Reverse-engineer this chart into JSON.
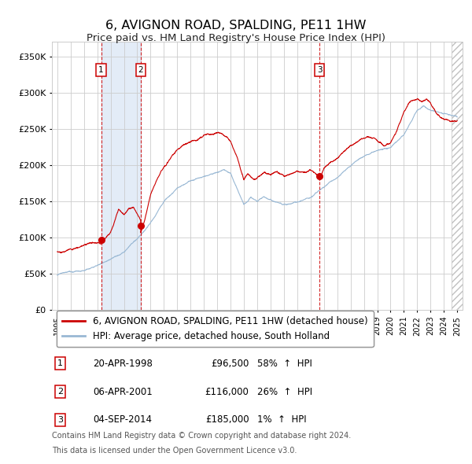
{
  "title": "6, AVIGNON ROAD, SPALDING, PE11 1HW",
  "subtitle": "Price paid vs. HM Land Registry's House Price Index (HPI)",
  "xlim": [
    1994.6,
    2025.4
  ],
  "ylim": [
    0,
    370000
  ],
  "yticks": [
    0,
    50000,
    100000,
    150000,
    200000,
    250000,
    300000,
    350000
  ],
  "ytick_labels": [
    "£0",
    "£50K",
    "£100K",
    "£150K",
    "£200K",
    "£250K",
    "£300K",
    "£350K"
  ],
  "xtick_years": [
    1995,
    1996,
    1997,
    1998,
    1999,
    2000,
    2001,
    2002,
    2003,
    2004,
    2005,
    2006,
    2007,
    2008,
    2009,
    2010,
    2011,
    2012,
    2013,
    2014,
    2015,
    2016,
    2017,
    2018,
    2019,
    2020,
    2021,
    2022,
    2023,
    2024,
    2025
  ],
  "line1_color": "#cc0000",
  "line2_color": "#99b8d4",
  "dot_color": "#cc0000",
  "vline_color": "#cc0000",
  "shade_color": "#dce8f5",
  "grid_color": "#cccccc",
  "bg_color": "#ffffff",
  "legend1_label": "6, AVIGNON ROAD, SPALDING, PE11 1HW (detached house)",
  "legend2_label": "HPI: Average price, detached house, South Holland",
  "transactions": [
    {
      "id": 1,
      "date": "20-APR-1998",
      "year": 1998.29,
      "price": 96500,
      "pct": "58%",
      "dir": "↑"
    },
    {
      "id": 2,
      "date": "06-APR-2001",
      "year": 2001.26,
      "price": 116000,
      "pct": "26%",
      "dir": "↑"
    },
    {
      "id": 3,
      "date": "04-SEP-2014",
      "year": 2014.67,
      "price": 185000,
      "pct": "1%",
      "dir": "↑"
    }
  ],
  "footnote1": "Contains HM Land Registry data © Crown copyright and database right 2024.",
  "footnote2": "This data is licensed under the Open Government Licence v3.0.",
  "title_fontsize": 11.5,
  "subtitle_fontsize": 9.5,
  "axis_fontsize": 8,
  "legend_fontsize": 8.5,
  "table_fontsize": 8.5
}
